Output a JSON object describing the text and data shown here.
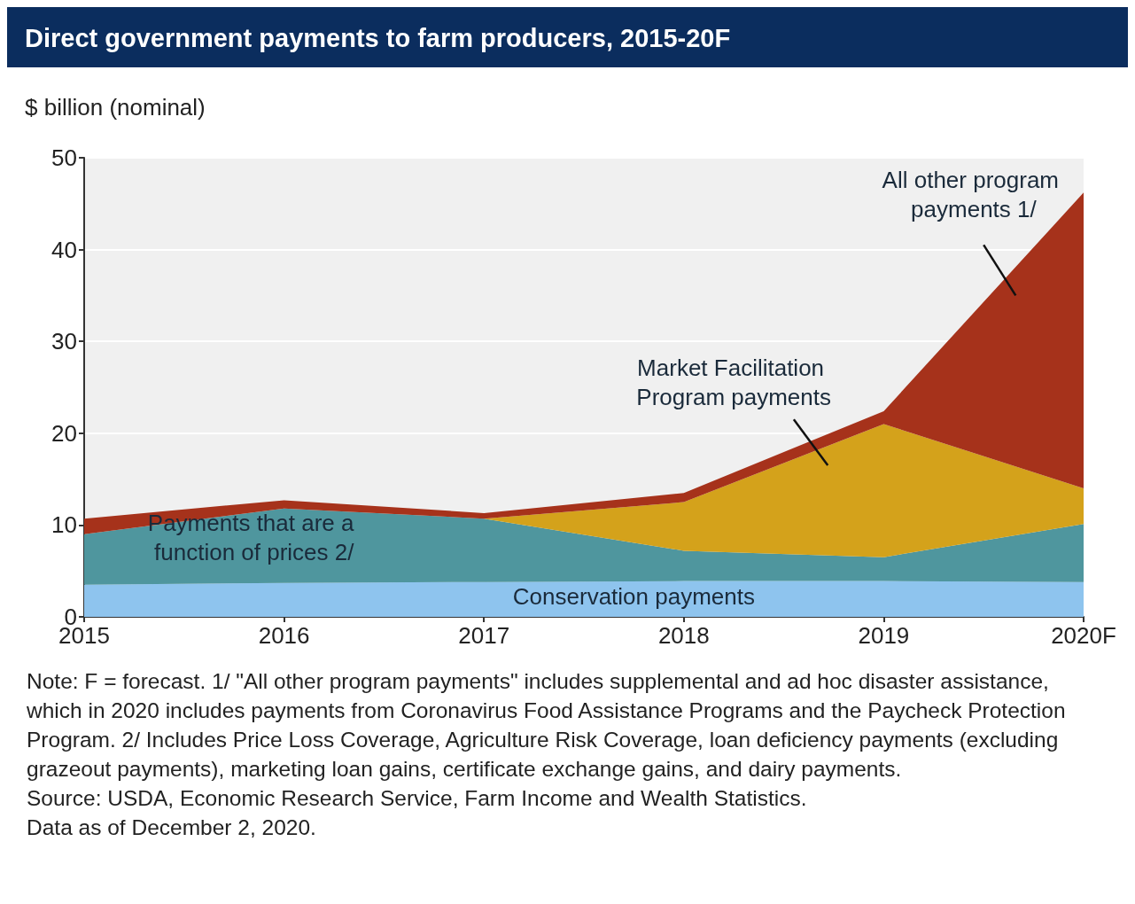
{
  "chart_data": {
    "type": "area",
    "title": "Direct government payments to farm producers, 2015-20F",
    "ylabel": "$ billion (nominal)",
    "categories": [
      "2015",
      "2016",
      "2017",
      "2018",
      "2019",
      "2020F"
    ],
    "stacked": true,
    "ylim": [
      0,
      50
    ],
    "yticks": [
      0,
      10,
      20,
      30,
      40,
      50
    ],
    "grid": "y",
    "legend": false,
    "series": [
      {
        "name": "Conservation payments",
        "color": "#8ec4ee",
        "values": [
          3.5,
          3.7,
          3.8,
          3.9,
          3.9,
          3.8
        ]
      },
      {
        "name": "Payments that are a function of prices 2/",
        "color": "#4f969e",
        "values": [
          5.5,
          8.1,
          6.9,
          3.3,
          2.6,
          6.3
        ]
      },
      {
        "name": "Market Facilitation Program payments",
        "color": "#d4a21b",
        "values": [
          0,
          0,
          0,
          5.3,
          14.5,
          3.9
        ]
      },
      {
        "name": "All other program payments 1/",
        "color": "#a6321b",
        "values": [
          1.7,
          0.9,
          0.6,
          1.0,
          1.4,
          32.2
        ]
      }
    ],
    "annotations": [
      "Note: F = forecast. 1/ \"All other program payments\" includes supplemental and ad hoc disaster assistance, which in 2020 includes payments from Coronavirus Food Assistance Programs and the Paycheck Protection Program. 2/ Includes Price Loss Coverage, Agriculture Risk Coverage, loan deficiency payments (excluding grazeout payments), marketing loan gains, certificate exchange gains, and dairy payments.",
      "Source: USDA, Economic Research Service, Farm Income and Wealth Statistics.",
      "Data as of December 2, 2020."
    ]
  }
}
